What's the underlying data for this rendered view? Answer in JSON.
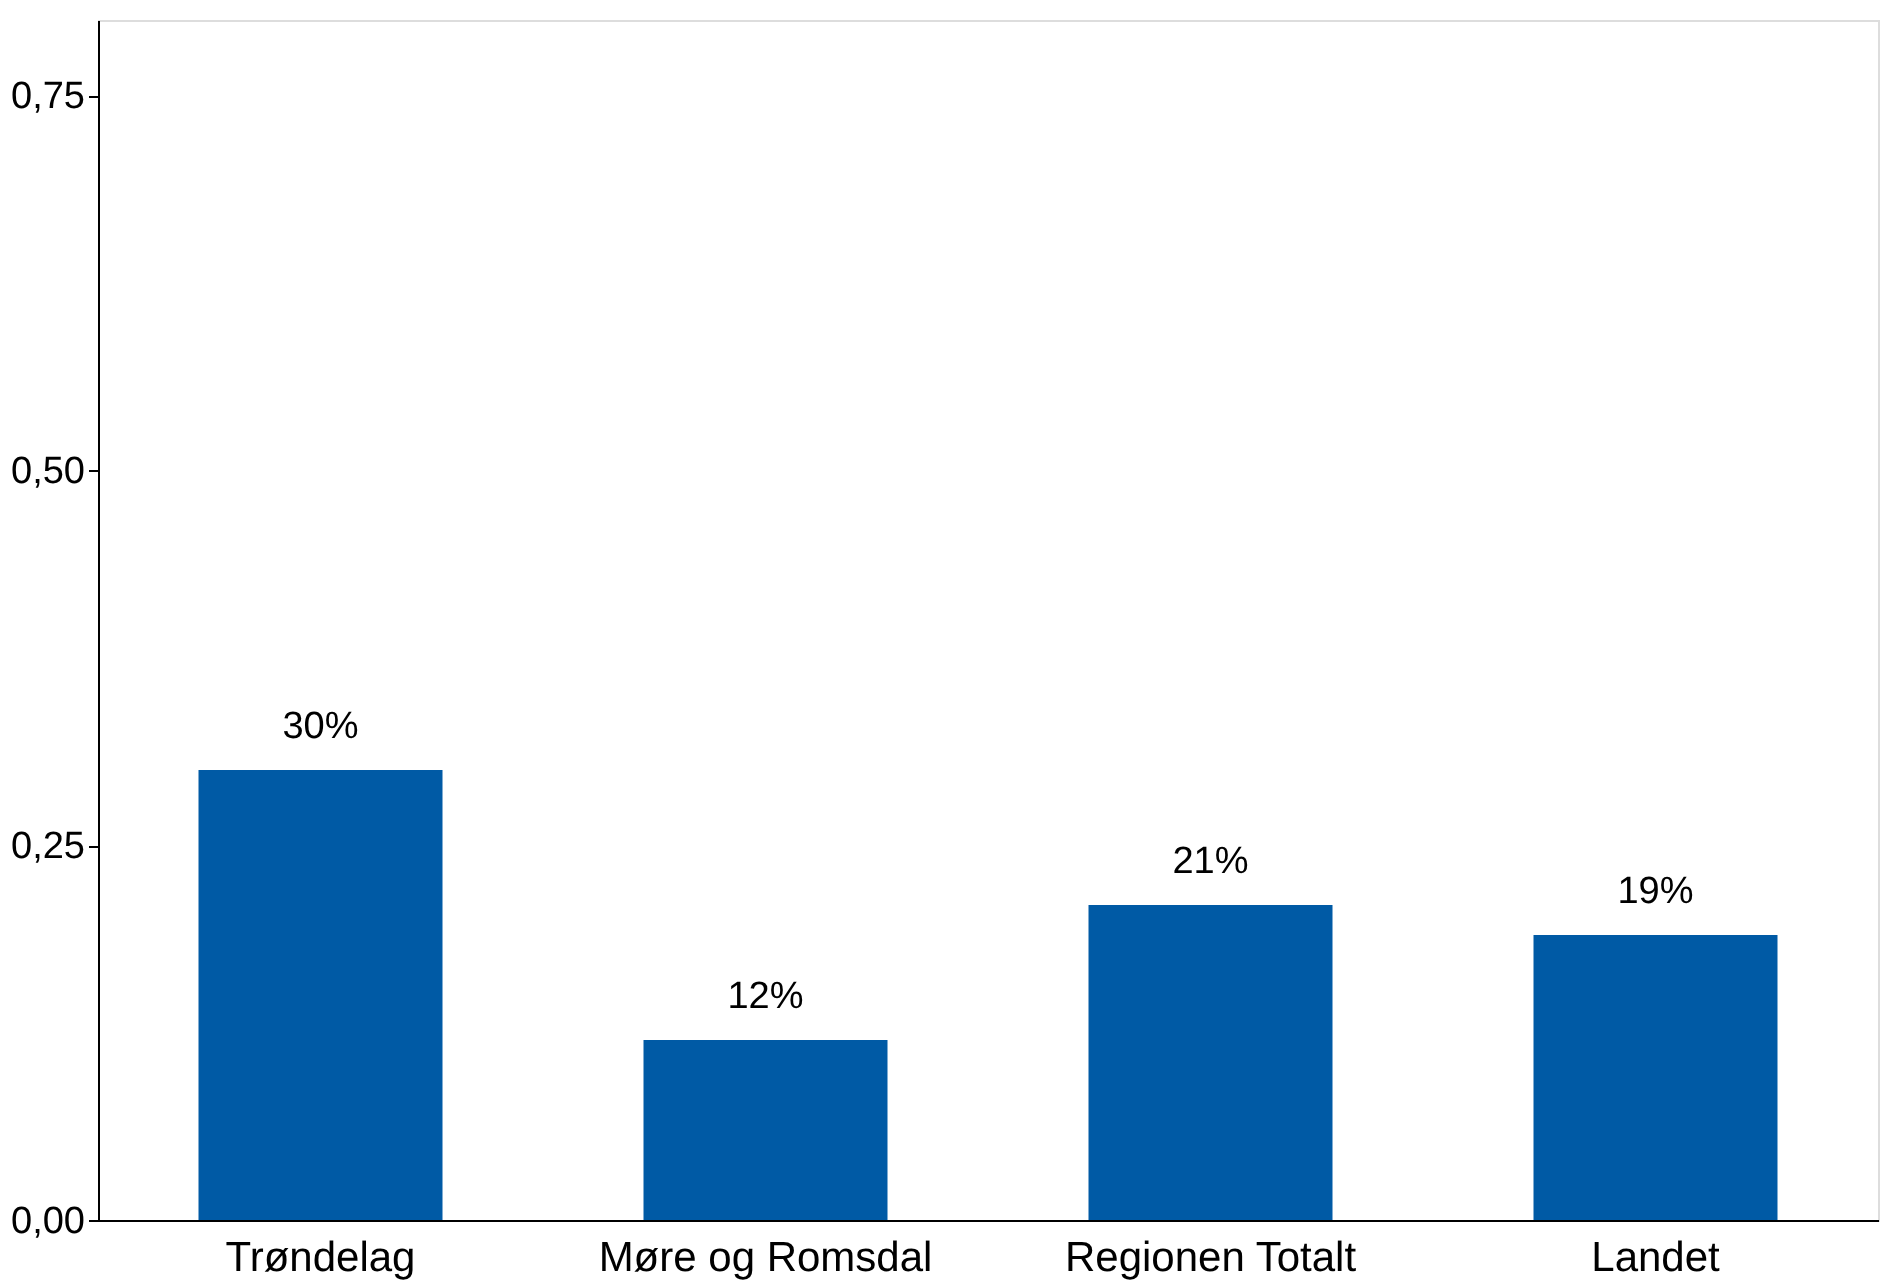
{
  "chart_data": {
    "type": "bar",
    "categories": [
      "Trøndelag",
      "Møre og Romsdal",
      "Regionen Totalt",
      "Landet"
    ],
    "values": [
      0.3,
      0.12,
      0.21,
      0.19
    ],
    "value_labels": [
      "30%",
      "12%",
      "21%",
      "19%"
    ],
    "color": "#005aa5",
    "ylim": [
      0,
      0.8
    ],
    "yticks": [
      {
        "value": 0,
        "label": "0,00"
      },
      {
        "value": 0.25,
        "label": "0,25"
      },
      {
        "value": 0.5,
        "label": "0,50"
      },
      {
        "value": 0.75,
        "label": "0,75"
      }
    ],
    "grid": false
  }
}
